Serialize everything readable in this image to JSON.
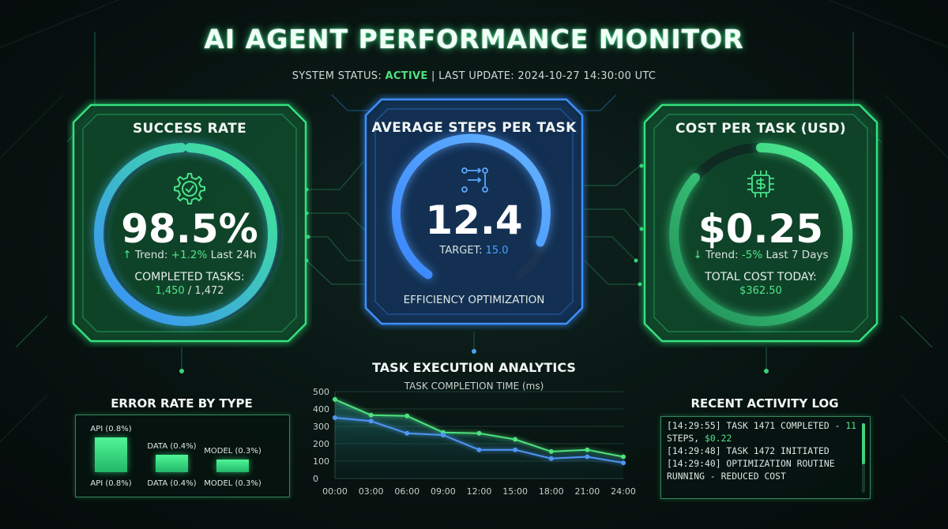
{
  "header": {
    "title": "AI AGENT PERFORMANCE MONITOR",
    "status_label": "SYSTEM STATUS:",
    "status_value": "ACTIVE",
    "separator": "|",
    "update_label": "LAST UPDATE: 2024-10-27 14:30:00 UTC"
  },
  "success_rate": {
    "title": "SUCCESS RATE",
    "value": "98.5%",
    "trend_arrow": "↑",
    "trend_label": "Trend:",
    "trend_value": "+1.2%",
    "trend_period": "Last 24h",
    "completed_label": "COMPLETED TASKS:",
    "completed_value": "1,450",
    "completed_total": "/ 1,472",
    "icon": "gear-check-icon"
  },
  "avg_steps": {
    "title": "AVERAGE STEPS PER TASK",
    "value": "12.4",
    "target_label": "TARGET:",
    "target_value": "15.0",
    "footer": "EFFICIENCY OPTIMIZATION",
    "icon": "workflow-icon"
  },
  "cost": {
    "title": "COST PER TASK (USD)",
    "value": "$0.25",
    "trend_arrow": "↓",
    "trend_label": "Trend:",
    "trend_value": "-5%",
    "trend_period": "Last 7 Days",
    "total_label": "TOTAL COST TODAY:",
    "total_value": "$362.50",
    "icon": "dollar-chip-icon"
  },
  "error_rate": {
    "title": "ERROR RATE BY TYPE",
    "bars": [
      {
        "label": "API (0.8%)",
        "value": 0.8
      },
      {
        "label": "DATA (0.4%)",
        "value": 0.4
      },
      {
        "label": "MODEL (0.3%)",
        "value": 0.3
      }
    ]
  },
  "chart_data": {
    "type": "line",
    "title": "TASK EXECUTION ANALYTICS",
    "subtitle": "TASK COMPLETION TIME (ms)",
    "x": [
      "00:00",
      "03:00",
      "06:00",
      "09:00",
      "12:00",
      "15:00",
      "18:00",
      "21:00",
      "24:00"
    ],
    "series": [
      {
        "values": [
          455,
          365,
          360,
          265,
          260,
          225,
          155,
          165,
          125
        ]
      },
      {
        "values": [
          350,
          330,
          260,
          250,
          165,
          165,
          115,
          125,
          90
        ]
      }
    ],
    "ylim": [
      0,
      500
    ],
    "yticks": [
      "500",
      "400",
      "300",
      "200",
      "100",
      "0"
    ],
    "colors": [
      "#4ee27e",
      "#4f96f4"
    ],
    "grid": true
  },
  "activity_log": {
    "title": "RECENT ACTIVITY LOG",
    "lines": [
      {
        "text": "[14:29:55] TASK 1471 COMPLETED - ",
        "hl": "11"
      },
      {
        "text": "STEPS, ",
        "hl": "$0.22"
      },
      {
        "text": "[14:29:48] TASK 1472 INITIATED",
        "hl": ""
      },
      {
        "text": "[14:29:40] OPTIMIZATION ROUTINE",
        "hl": ""
      },
      {
        "text": "RUNNING - REDUCED COST",
        "hl": ""
      }
    ]
  }
}
